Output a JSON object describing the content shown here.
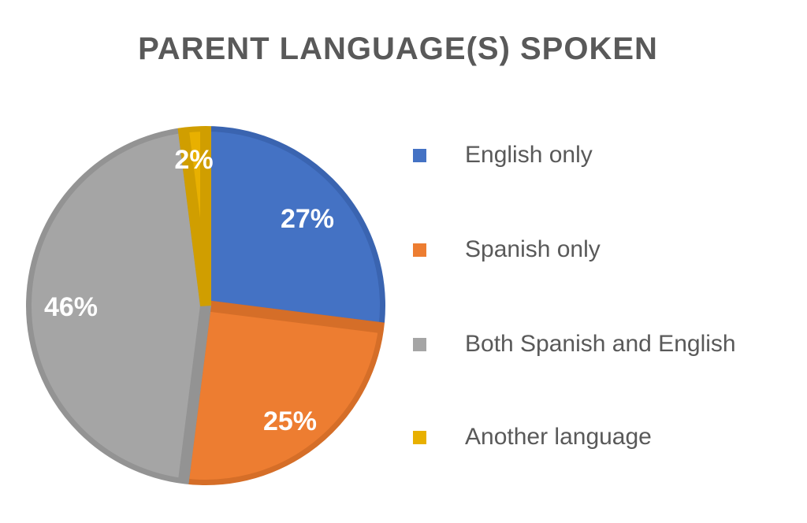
{
  "chart_data": {
    "type": "pie",
    "title": "PARENT LANGUAGE(S) SPOKEN",
    "legend_position": "right",
    "start_angle": "12 o'clock, clockwise",
    "categories": [
      "English only",
      "Spanish only",
      "Both Spanish and English",
      "Another language"
    ],
    "values": [
      27,
      25,
      46,
      2
    ],
    "data_labels": [
      "27%",
      "25%",
      "46%",
      "2%"
    ],
    "colors": [
      "#4472C4",
      "#ED7D31",
      "#A5A5A5",
      "#E8B000"
    ],
    "border_colors": [
      "#3A64B0",
      "#D56E28",
      "#939393",
      "#D09E00"
    ]
  }
}
